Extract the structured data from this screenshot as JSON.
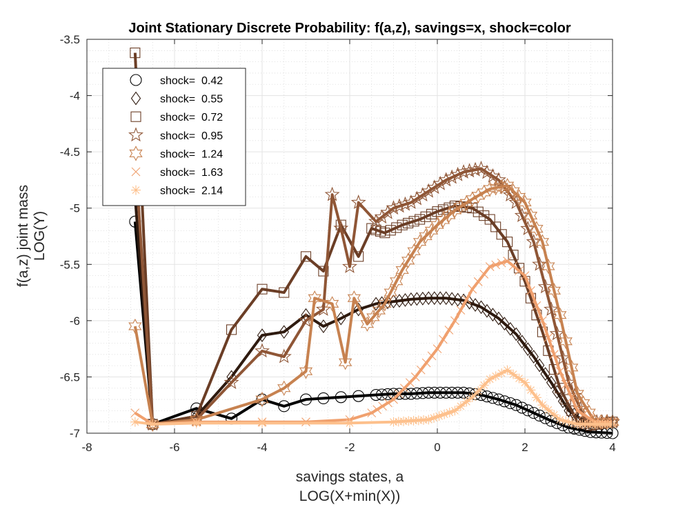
{
  "chart_data": {
    "type": "line",
    "title": "Joint Stationary Discrete Probability: f(a,z), savings=x, shock=color",
    "xlabel_lines": [
      "savings states, a",
      "LOG(X+min(X))"
    ],
    "ylabel_lines": [
      "f(a,z) joint mass",
      "LOG(Y)"
    ],
    "xlim": [
      -8,
      4
    ],
    "ylim": [
      -7,
      -3.5
    ],
    "xticks": [
      "-8",
      "-6",
      "-4",
      "-2",
      "0",
      "2",
      "4"
    ],
    "yticks": [
      "-3.5",
      "-4",
      "-4.5",
      "-5",
      "-5.5",
      "-6",
      "-6.5",
      "-7"
    ],
    "xtick_values": [
      -8,
      -6,
      -4,
      -2,
      0,
      2,
      4
    ],
    "ytick_values": [
      -3.5,
      -4,
      -4.5,
      -5,
      -5.5,
      -6,
      -6.5,
      -7
    ],
    "grid": true,
    "minor_grid": true,
    "legend_position": "top-left",
    "series": [
      {
        "name": "shock=  0.42",
        "color": "#000000",
        "marker": "circle",
        "points": [
          [
            -6.9,
            -5.12
          ],
          [
            -6.5,
            -6.92
          ],
          [
            -5.5,
            -6.78
          ],
          [
            -4.7,
            -6.87
          ],
          [
            -4.0,
            -6.7
          ],
          [
            -3.5,
            -6.76
          ],
          [
            -3.0,
            -6.7
          ],
          [
            -2.6,
            -6.69
          ],
          [
            -2.2,
            -6.68
          ],
          [
            -1.8,
            -6.67
          ],
          [
            -1.4,
            -6.66
          ],
          [
            -1.0,
            -6.65
          ],
          [
            -0.6,
            -6.65
          ],
          [
            -0.2,
            -6.64
          ],
          [
            0.2,
            -6.64
          ],
          [
            0.6,
            -6.64
          ],
          [
            1.0,
            -6.66
          ],
          [
            1.4,
            -6.7
          ],
          [
            1.8,
            -6.75
          ],
          [
            2.2,
            -6.82
          ],
          [
            2.6,
            -6.89
          ],
          [
            3.0,
            -6.95
          ],
          [
            3.5,
            -6.99
          ],
          [
            4.0,
            -7.0
          ]
        ]
      },
      {
        "name": "shock=  0.55",
        "color": "#2e1a0f",
        "marker": "diamond",
        "points": [
          [
            -6.9,
            -4.9
          ],
          [
            -6.5,
            -6.92
          ],
          [
            -5.5,
            -6.85
          ],
          [
            -4.7,
            -6.5
          ],
          [
            -4.0,
            -6.13
          ],
          [
            -3.5,
            -6.1
          ],
          [
            -3.0,
            -5.95
          ],
          [
            -2.6,
            -6.05
          ],
          [
            -2.2,
            -5.98
          ],
          [
            -1.8,
            -5.9
          ],
          [
            -1.4,
            -5.85
          ],
          [
            -1.0,
            -5.83
          ],
          [
            -0.6,
            -5.81
          ],
          [
            -0.2,
            -5.8
          ],
          [
            0.2,
            -5.8
          ],
          [
            0.6,
            -5.82
          ],
          [
            1.0,
            -5.88
          ],
          [
            1.4,
            -5.98
          ],
          [
            1.8,
            -6.12
          ],
          [
            2.2,
            -6.32
          ],
          [
            2.6,
            -6.55
          ],
          [
            3.0,
            -6.8
          ],
          [
            3.5,
            -6.93
          ],
          [
            4.0,
            -6.9
          ]
        ]
      },
      {
        "name": "shock=  0.72",
        "color": "#6b3e26",
        "marker": "square",
        "points": [
          [
            -6.9,
            -3.62
          ],
          [
            -6.5,
            -6.92
          ],
          [
            -5.5,
            -6.85
          ],
          [
            -4.7,
            -6.08
          ],
          [
            -4.0,
            -5.72
          ],
          [
            -3.5,
            -5.75
          ],
          [
            -3.0,
            -5.43
          ],
          [
            -2.6,
            -5.56
          ],
          [
            -2.2,
            -5.15
          ],
          [
            -1.8,
            -5.43
          ],
          [
            -1.5,
            -5.18
          ],
          [
            -1.2,
            -5.22
          ],
          [
            -0.8,
            -5.15
          ],
          [
            -0.4,
            -5.1
          ],
          [
            0.0,
            -5.03
          ],
          [
            0.4,
            -4.98
          ],
          [
            0.8,
            -5.0
          ],
          [
            1.2,
            -5.1
          ],
          [
            1.6,
            -5.3
          ],
          [
            2.0,
            -5.65
          ],
          [
            2.4,
            -6.1
          ],
          [
            2.8,
            -6.6
          ],
          [
            3.2,
            -6.9
          ],
          [
            3.5,
            -6.93
          ],
          [
            4.0,
            -6.9
          ]
        ]
      },
      {
        "name": "shock=  0.95",
        "color": "#8f5636",
        "marker": "pentagram",
        "points": [
          [
            -6.9,
            -4.5
          ],
          [
            -6.5,
            -6.92
          ],
          [
            -5.5,
            -6.88
          ],
          [
            -4.7,
            -6.55
          ],
          [
            -4.0,
            -6.27
          ],
          [
            -3.5,
            -6.32
          ],
          [
            -3.0,
            -6.0
          ],
          [
            -2.6,
            -5.9
          ],
          [
            -2.4,
            -4.88
          ],
          [
            -2.2,
            -5.18
          ],
          [
            -2.0,
            -5.52
          ],
          [
            -1.8,
            -4.95
          ],
          [
            -1.4,
            -5.12
          ],
          [
            -1.0,
            -5.0
          ],
          [
            -0.6,
            -4.95
          ],
          [
            -0.2,
            -4.85
          ],
          [
            0.2,
            -4.75
          ],
          [
            0.6,
            -4.68
          ],
          [
            1.0,
            -4.65
          ],
          [
            1.4,
            -4.75
          ],
          [
            1.8,
            -4.95
          ],
          [
            2.2,
            -5.3
          ],
          [
            2.6,
            -5.9
          ],
          [
            3.0,
            -6.55
          ],
          [
            3.4,
            -6.9
          ],
          [
            4.0,
            -6.9
          ]
        ]
      },
      {
        "name": "shock=  1.24",
        "color": "#c78250",
        "marker": "hexagram",
        "points": [
          [
            -6.9,
            -6.05
          ],
          [
            -6.5,
            -6.92
          ],
          [
            -5.5,
            -6.88
          ],
          [
            -4.0,
            -6.7
          ],
          [
            -3.5,
            -6.6
          ],
          [
            -3.0,
            -6.45
          ],
          [
            -2.8,
            -5.8
          ],
          [
            -2.4,
            -5.85
          ],
          [
            -2.1,
            -6.37
          ],
          [
            -1.9,
            -5.8
          ],
          [
            -1.6,
            -6.03
          ],
          [
            -1.2,
            -5.85
          ],
          [
            -0.8,
            -5.55
          ],
          [
            -0.4,
            -5.3
          ],
          [
            0.0,
            -5.15
          ],
          [
            0.4,
            -5.02
          ],
          [
            0.8,
            -4.92
          ],
          [
            1.2,
            -4.83
          ],
          [
            1.6,
            -4.8
          ],
          [
            2.0,
            -4.95
          ],
          [
            2.4,
            -5.3
          ],
          [
            2.8,
            -5.95
          ],
          [
            3.2,
            -6.65
          ],
          [
            3.6,
            -6.9
          ],
          [
            4.0,
            -6.9
          ]
        ]
      },
      {
        "name": "shock=  1.63",
        "color": "#f0a06e",
        "marker": "cross",
        "points": [
          [
            -6.9,
            -6.82
          ],
          [
            -6.5,
            -6.92
          ],
          [
            -5.5,
            -6.9
          ],
          [
            -4.0,
            -6.9
          ],
          [
            -3.0,
            -6.9
          ],
          [
            -2.0,
            -6.88
          ],
          [
            -1.5,
            -6.82
          ],
          [
            -1.0,
            -6.7
          ],
          [
            -0.5,
            -6.5
          ],
          [
            0.0,
            -6.25
          ],
          [
            0.4,
            -6.0
          ],
          [
            0.8,
            -5.72
          ],
          [
            1.2,
            -5.52
          ],
          [
            1.6,
            -5.47
          ],
          [
            2.0,
            -5.6
          ],
          [
            2.4,
            -6.0
          ],
          [
            2.8,
            -6.45
          ],
          [
            3.2,
            -6.8
          ],
          [
            3.6,
            -6.9
          ],
          [
            4.0,
            -6.9
          ]
        ]
      },
      {
        "name": "shock=  2.14",
        "color": "#fdc08c",
        "marker": "asterisk",
        "points": [
          [
            -6.9,
            -6.9
          ],
          [
            -6.5,
            -6.92
          ],
          [
            -5.5,
            -6.91
          ],
          [
            -4.0,
            -6.91
          ],
          [
            -2.0,
            -6.91
          ],
          [
            -1.0,
            -6.9
          ],
          [
            -0.2,
            -6.88
          ],
          [
            0.4,
            -6.8
          ],
          [
            0.8,
            -6.68
          ],
          [
            1.2,
            -6.52
          ],
          [
            1.6,
            -6.44
          ],
          [
            2.0,
            -6.55
          ],
          [
            2.4,
            -6.75
          ],
          [
            2.8,
            -6.88
          ],
          [
            3.2,
            -6.92
          ],
          [
            4.0,
            -6.92
          ]
        ]
      }
    ]
  }
}
